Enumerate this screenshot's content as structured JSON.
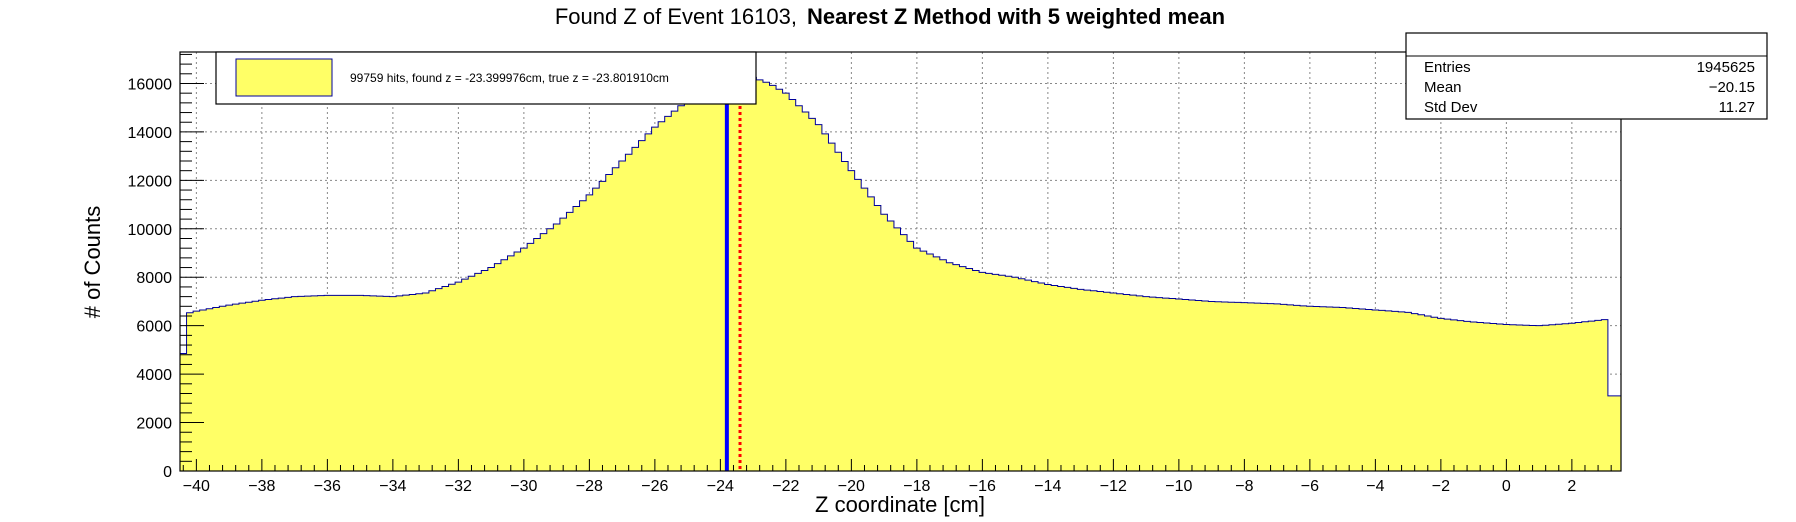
{
  "title": {
    "prefix": "Found Z of Event 16103,",
    "bold": "Nearest Z Method with 5 weighted mean"
  },
  "legend": {
    "label": "99759 hits, found z = -23.399976cm, true z = -23.801910cm",
    "fill_color": "#ffff66",
    "border_color": "#000099"
  },
  "stats": {
    "rows": [
      {
        "name": "Entries",
        "value": "1945625"
      },
      {
        "name": "Mean",
        "value": "−20.15"
      },
      {
        "name": "Std Dev",
        "value": "11.27"
      }
    ]
  },
  "chart_data": {
    "type": "histogram",
    "xlabel": "Z coordinate [cm]",
    "ylabel": "# of Counts",
    "xlim": [
      -40.5,
      3.5
    ],
    "ylim": [
      0,
      17300
    ],
    "x_ticks": [
      -40,
      -38,
      -36,
      -34,
      -32,
      -30,
      -28,
      -26,
      -24,
      -22,
      -20,
      -18,
      -16,
      -14,
      -12,
      -10,
      -8,
      -6,
      -4,
      -2,
      0,
      2
    ],
    "x_tick_labels": [
      "−40",
      "−38",
      "−36",
      "−34",
      "−32",
      "−30",
      "−28",
      "−26",
      "−24",
      "−22",
      "−20",
      "−18",
      "−16",
      "−14",
      "−12",
      "−10",
      "−8",
      "−6",
      "−4",
      "−2",
      "0",
      "2"
    ],
    "y_ticks": [
      0,
      2000,
      4000,
      6000,
      8000,
      10000,
      12000,
      14000,
      16000
    ],
    "y_tick_labels": [
      "0",
      "2000",
      "4000",
      "6000",
      "8000",
      "10000",
      "12000",
      "14000",
      "16000"
    ],
    "bin_width": 0.2,
    "bins_start": -40.5,
    "curve_points": [
      [
        -40.5,
        3200
      ],
      [
        -40.3,
        6500
      ],
      [
        -40.0,
        6600
      ],
      [
        -39.0,
        6850
      ],
      [
        -38.0,
        7050
      ],
      [
        -37.0,
        7200
      ],
      [
        -36.0,
        7250
      ],
      [
        -35.0,
        7250
      ],
      [
        -34.0,
        7200
      ],
      [
        -33.0,
        7350
      ],
      [
        -32.0,
        7800
      ],
      [
        -31.0,
        8400
      ],
      [
        -30.0,
        9200
      ],
      [
        -29.0,
        10200
      ],
      [
        -28.0,
        11400
      ],
      [
        -27.0,
        12800
      ],
      [
        -26.0,
        14200
      ],
      [
        -25.0,
        15300
      ],
      [
        -24.0,
        15900
      ],
      [
        -23.5,
        16200
      ],
      [
        -23.0,
        16250
      ],
      [
        -22.5,
        16000
      ],
      [
        -22.0,
        15600
      ],
      [
        -21.0,
        14300
      ],
      [
        -20.0,
        12400
      ],
      [
        -19.0,
        10600
      ],
      [
        -18.0,
        9200
      ],
      [
        -17.0,
        8600
      ],
      [
        -16.0,
        8200
      ],
      [
        -15.0,
        8000
      ],
      [
        -14.0,
        7700
      ],
      [
        -13.0,
        7500
      ],
      [
        -12.0,
        7350
      ],
      [
        -11.0,
        7200
      ],
      [
        -10.0,
        7100
      ],
      [
        -9.0,
        7000
      ],
      [
        -8.0,
        6950
      ],
      [
        -7.0,
        6900
      ],
      [
        -6.0,
        6800
      ],
      [
        -5.0,
        6750
      ],
      [
        -4.0,
        6650
      ],
      [
        -3.0,
        6550
      ],
      [
        -2.0,
        6300
      ],
      [
        -1.0,
        6150
      ],
      [
        0.0,
        6050
      ],
      [
        1.0,
        6000
      ],
      [
        2.0,
        6100
      ],
      [
        3.0,
        6250
      ],
      [
        3.2,
        3100
      ]
    ],
    "series": [
      {
        "line_color": "#000099",
        "fill_color": "#ffff66"
      }
    ],
    "markers": [
      {
        "x": -23.80191,
        "color": "#0000ff",
        "style": "solid"
      },
      {
        "x": -23.399976,
        "color": "#ff0000",
        "style": "dotted"
      }
    ],
    "grid": true
  }
}
